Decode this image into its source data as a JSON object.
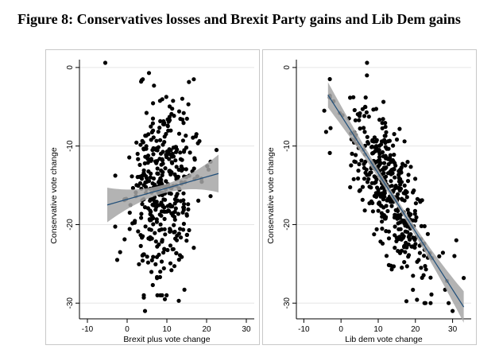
{
  "title": "Figure 8: Conservatives losses and Brexit Party gains and Lib Dem gains",
  "colors": {
    "points": "#000000",
    "fit_line": "#1f4e79",
    "ci_band": "#a6a6a6",
    "grid": "#e6e6e6",
    "frame": "#c8c8c8"
  },
  "chart_data": [
    {
      "type": "scatter",
      "xlabel": "Brexit plus vote change",
      "ylabel": "Conservative vote change",
      "xlim": [
        -12,
        32
      ],
      "ylim": [
        -32,
        1
      ],
      "xticks": [
        -10,
        0,
        10,
        20,
        30
      ],
      "yticks": [
        0,
        -10,
        -20,
        -30
      ],
      "grid": true,
      "fit": {
        "x": [
          -5,
          23
        ],
        "y": [
          -17.5,
          -13.5
        ],
        "ci_half_width_ends": [
          2.2,
          2.4
        ],
        "ci_half_width_mid": 0.55
      },
      "point_count": 420,
      "cloud": {
        "x_mean": 9,
        "x_sd": 4.3,
        "y_mean": -15.8,
        "y_sd": 6.0
      },
      "points_outliers": [
        [
          -5.5,
          0.6
        ],
        [
          5.5,
          -0.7
        ],
        [
          4.5,
          -31
        ],
        [
          9.5,
          -29.5
        ],
        [
          13,
          -29.7
        ],
        [
          4.2,
          -29.3
        ],
        [
          22.5,
          -10.5
        ],
        [
          -2.5,
          -24.5
        ],
        [
          20.5,
          -13
        ]
      ]
    },
    {
      "type": "scatter",
      "xlabel": "Lib dem vote change",
      "ylabel": "Conservative vote change",
      "xlim": [
        -12,
        35
      ],
      "ylim": [
        -32,
        1
      ],
      "xticks": [
        -10,
        0,
        10,
        20,
        30
      ],
      "yticks": [
        0,
        -10,
        -20,
        -30
      ],
      "grid": true,
      "fit": {
        "x": [
          -3.5,
          33
        ],
        "y": [
          -3.5,
          -30.5
        ],
        "ci_half_width_ends": [
          1.6,
          2.0
        ],
        "ci_half_width_mid": 0.45
      },
      "point_count": 420,
      "cloud": {
        "x_mean": 13,
        "x_sd": 5.5,
        "slope": -0.74,
        "intercept": -6.0,
        "resid_sd": 3.8
      },
      "points_outliers": [
        [
          7,
          0.6
        ],
        [
          -4.5,
          -5.5
        ],
        [
          -4,
          -8.2
        ],
        [
          33,
          -26.8
        ],
        [
          30,
          -31
        ],
        [
          28,
          -28.3
        ],
        [
          30.5,
          -24
        ],
        [
          -2,
          -4.3
        ],
        [
          31,
          -22
        ]
      ]
    }
  ]
}
